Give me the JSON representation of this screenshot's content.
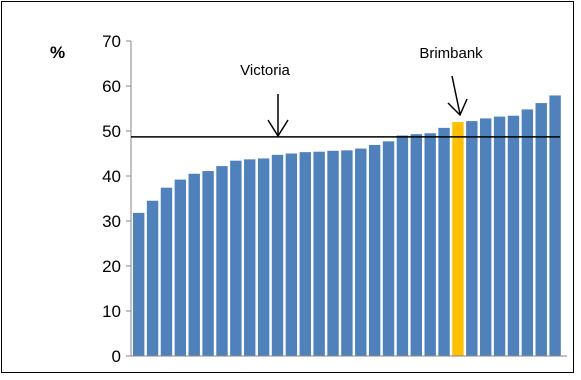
{
  "chart_data": {
    "type": "bar",
    "unit_label": "%",
    "ylim": [
      0,
      70
    ],
    "yticks": [
      "0",
      "10",
      "20",
      "30",
      "40",
      "50",
      "60",
      "70"
    ],
    "grid": false,
    "legend": "none",
    "colors": {
      "bar": "#4F81BD",
      "highlight": "#FFC000",
      "reference_line": "#000000",
      "axis": "#868686",
      "border": "#000000"
    },
    "values": [
      31.8,
      34.5,
      37.4,
      39.2,
      40.5,
      41.1,
      42.2,
      43.4,
      43.7,
      43.9,
      44.7,
      45.0,
      45.3,
      45.4,
      45.6,
      45.7,
      46.1,
      46.9,
      47.7,
      49.0,
      49.3,
      49.5,
      50.7,
      52.0,
      52.2,
      52.8,
      53.2,
      53.4,
      54.8,
      56.2,
      57.9
    ],
    "highlight_index": 23,
    "reference_line": {
      "label": "Victoria",
      "value": 48.7
    },
    "annotation": {
      "label": "Brimbank"
    }
  }
}
